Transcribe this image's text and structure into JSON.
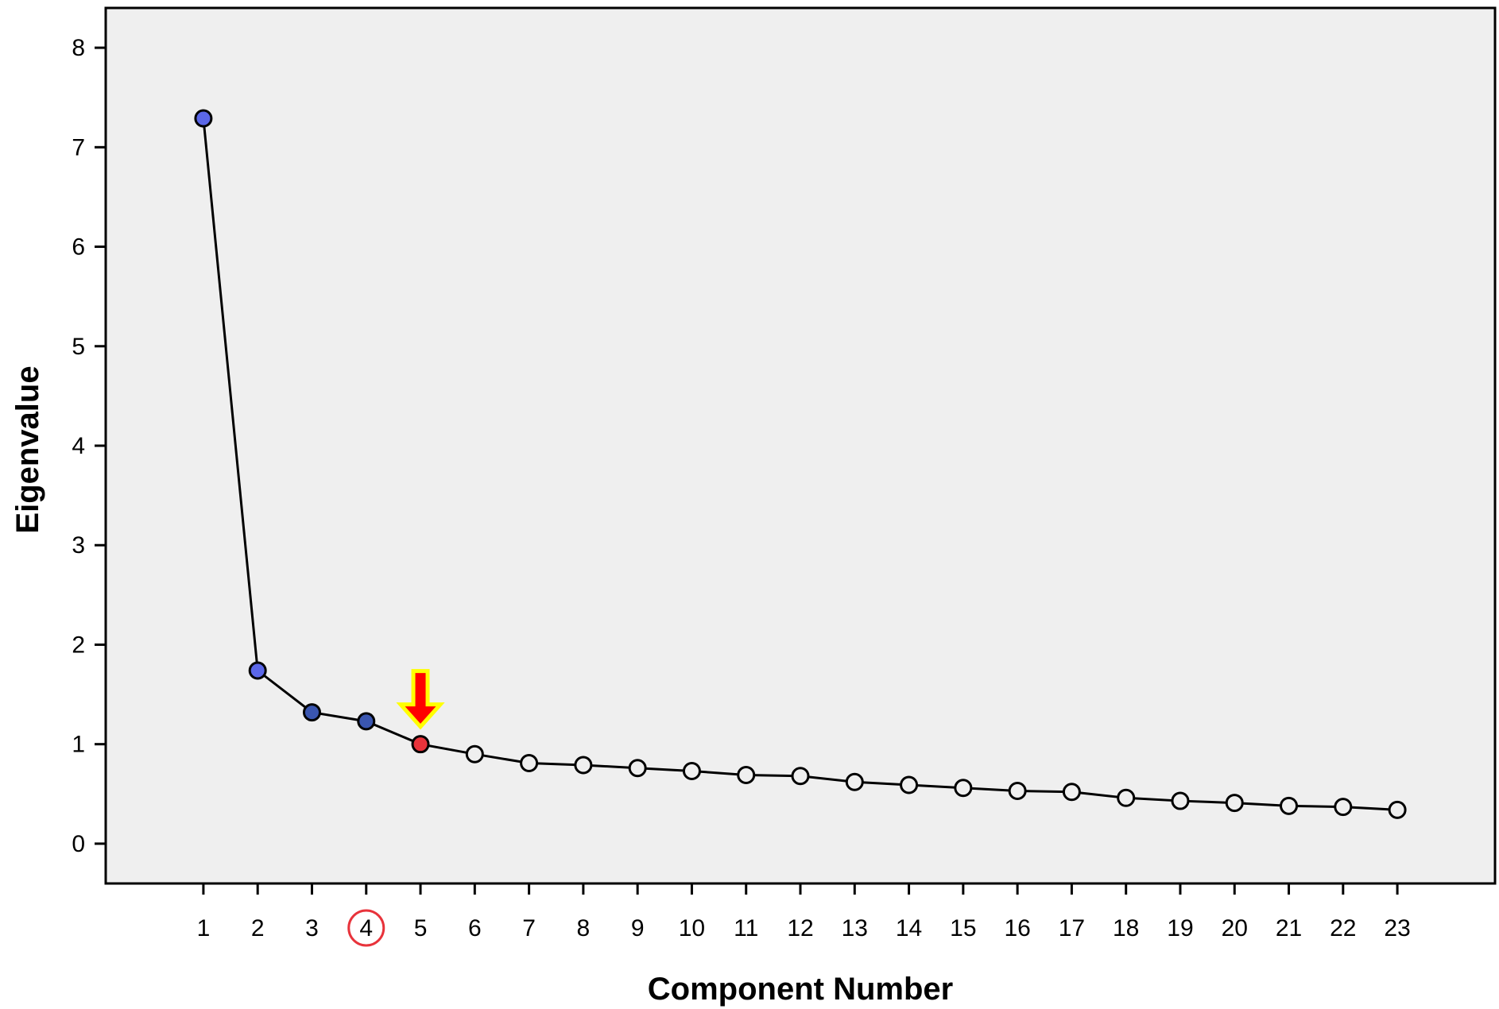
{
  "chart_data": {
    "type": "line",
    "xlabel": "Component Number",
    "ylabel": "Eigenvalue",
    "x": [
      1,
      2,
      3,
      4,
      5,
      6,
      7,
      8,
      9,
      10,
      11,
      12,
      13,
      14,
      15,
      16,
      17,
      18,
      19,
      20,
      21,
      22,
      23
    ],
    "values": [
      7.29,
      1.74,
      1.32,
      1.23,
      1.0,
      0.9,
      0.81,
      0.79,
      0.76,
      0.73,
      0.69,
      0.68,
      0.62,
      0.59,
      0.56,
      0.53,
      0.52,
      0.46,
      0.43,
      0.41,
      0.38,
      0.37,
      0.34
    ],
    "x_ticks": [
      "1",
      "2",
      "3",
      "4",
      "5",
      "6",
      "7",
      "8",
      "9",
      "10",
      "11",
      "12",
      "13",
      "14",
      "15",
      "16",
      "17",
      "18",
      "19",
      "20",
      "21",
      "22",
      "23"
    ],
    "y_ticks": [
      "0",
      "1",
      "2",
      "3",
      "4",
      "5",
      "6",
      "7",
      "8"
    ],
    "ylim": [
      -0.4,
      8.4
    ],
    "xlim": [
      -0.8,
      24.8
    ],
    "grid": false,
    "legend": "none",
    "marker_fill": [
      "#5b67e8",
      "#5b67e8",
      "#3a56b0",
      "#3a56b0",
      "#e8333b",
      "none",
      "none",
      "none",
      "none",
      "none",
      "none",
      "none",
      "none",
      "none",
      "none",
      "none",
      "none",
      "none",
      "none",
      "none",
      "none",
      "none",
      "none"
    ],
    "highlighted_x_tick": "4",
    "highlighted_point": 5,
    "colors": {
      "plot_background": "#efefef",
      "line": "#000000",
      "tick_circle": "#e8333b",
      "arrow_fill": "#ff0000",
      "arrow_outline": "#ffff00"
    }
  }
}
